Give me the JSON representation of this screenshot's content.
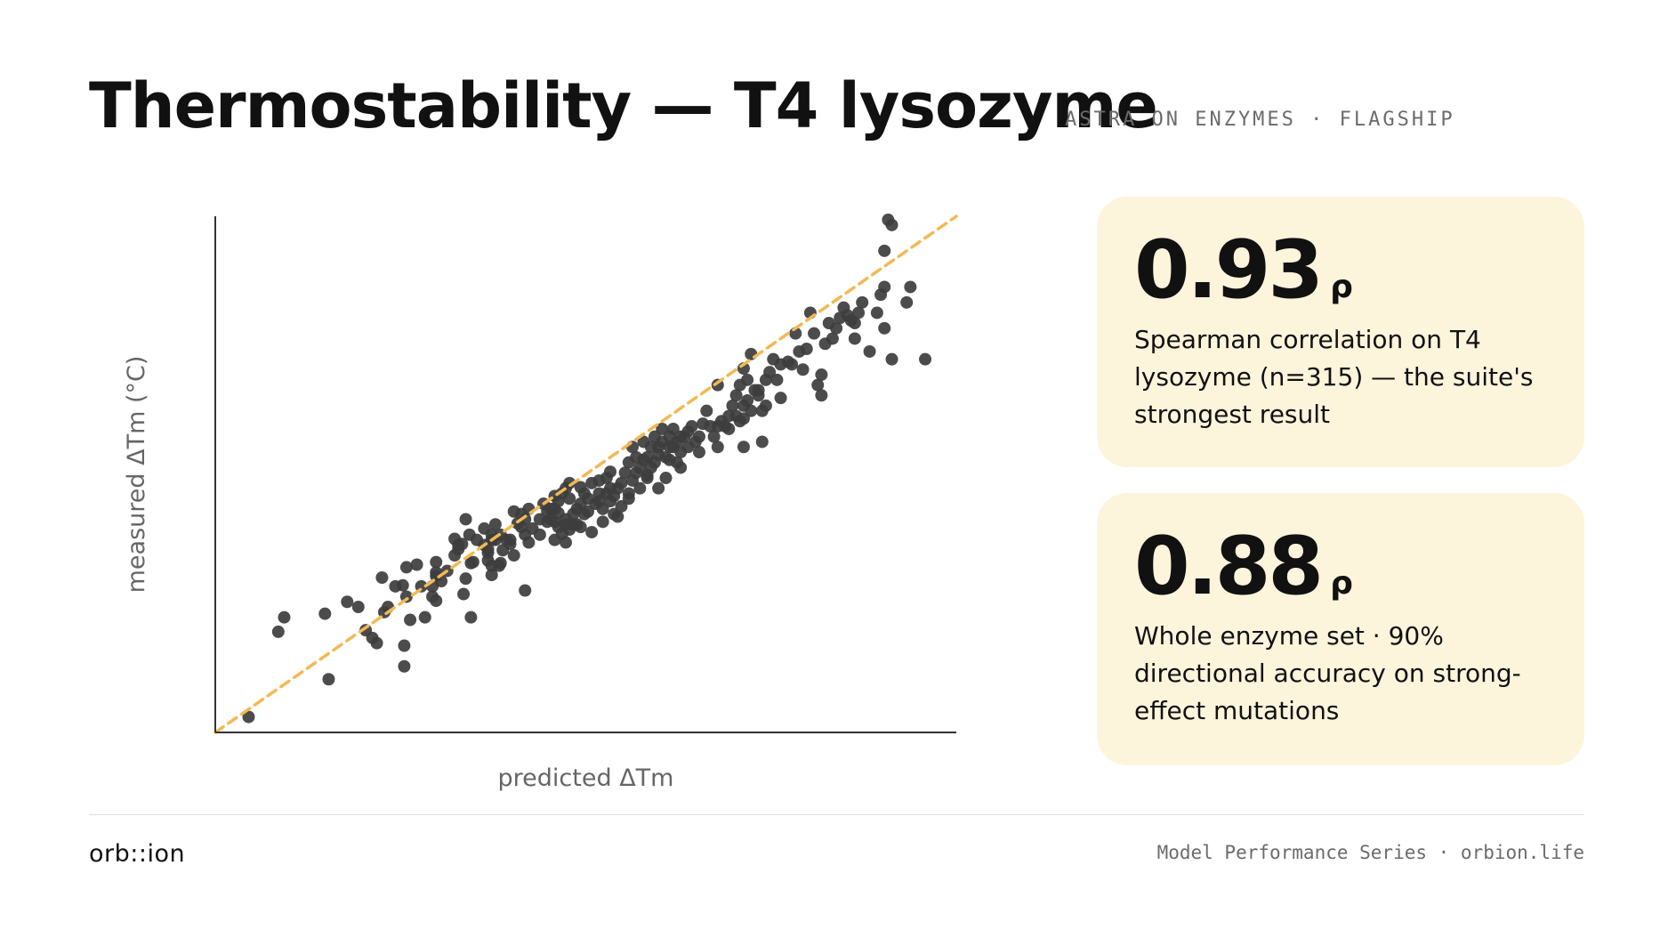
{
  "header": {
    "title": "Thermostability — T4 lysozyme",
    "subtitle": "ASTRA ON ENZYMES · FLAGSHIP"
  },
  "chart_data": {
    "type": "scatter",
    "xlabel": "predicted ΔTm",
    "ylabel": "measured ΔTm (°C)",
    "xlim": [
      0,
      100
    ],
    "ylim": [
      0,
      100
    ],
    "grid": false,
    "legend": "none",
    "point_color": "#3d3d3d",
    "reference_line": {
      "style": "dashed",
      "color": "#f2b955",
      "from": [
        0,
        0
      ],
      "to": [
        100,
        100
      ]
    },
    "points": [
      [
        4.5,
        3
      ],
      [
        8.5,
        19.5
      ],
      [
        9.3,
        22.3
      ],
      [
        14.8,
        23
      ],
      [
        15.3,
        10.3
      ],
      [
        17.8,
        25.3
      ],
      [
        19.3,
        24.3
      ],
      [
        20.3,
        19.8
      ],
      [
        21.2,
        18.3
      ],
      [
        21.8,
        17.3
      ],
      [
        22.8,
        23.3
      ],
      [
        22.5,
        30
      ],
      [
        23.3,
        24.3
      ],
      [
        24.3,
        28.3
      ],
      [
        25.3,
        28.5
      ],
      [
        25.8,
        26.3
      ],
      [
        25.5,
        12.8
      ],
      [
        25.5,
        16.8
      ],
      [
        26.3,
        21.8
      ],
      [
        25.8,
        32
      ],
      [
        27.2,
        32.5
      ],
      [
        27.8,
        28.3
      ],
      [
        28.3,
        22.3
      ],
      [
        29.3,
        28.3
      ],
      [
        29.3,
        26.3
      ],
      [
        29.8,
        33
      ],
      [
        29.8,
        31
      ],
      [
        29.8,
        30.3
      ],
      [
        29.8,
        25.5
      ],
      [
        30.5,
        29.3
      ],
      [
        31.3,
        31.3
      ],
      [
        32.3,
        34.3
      ],
      [
        32.3,
        37.5
      ],
      [
        32.8,
        36.3
      ],
      [
        32.8,
        35.5
      ],
      [
        33.3,
        36.5
      ],
      [
        33.8,
        29.8
      ],
      [
        33.5,
        26.8
      ],
      [
        34.5,
        32.8
      ],
      [
        33.8,
        41.3
      ],
      [
        34.3,
        38.3
      ],
      [
        34.8,
        33
      ],
      [
        34.5,
        22.3
      ],
      [
        35.3,
        37.3
      ],
      [
        36.3,
        39.5
      ],
      [
        36.3,
        36.3
      ],
      [
        36.8,
        35.5
      ],
      [
        36.8,
        34.8
      ],
      [
        37.3,
        37.3
      ],
      [
        37.3,
        38.3
      ],
      [
        36.8,
        33.3
      ],
      [
        37.3,
        32.3
      ],
      [
        37.3,
        30.5
      ],
      [
        37.8,
        40.3
      ],
      [
        37.8,
        37.3
      ],
      [
        38.3,
        32.3
      ],
      [
        38.5,
        32.8
      ],
      [
        38.8,
        35.3
      ],
      [
        38.5,
        38.3
      ],
      [
        39.3,
        37.3
      ],
      [
        39.8,
        37.3
      ],
      [
        39.8,
        36.5
      ],
      [
        40.3,
        34.3
      ],
      [
        40.3,
        42.8
      ],
      [
        40.8,
        40.5
      ],
      [
        41.3,
        42.3
      ],
      [
        41.3,
        39.8
      ],
      [
        41.8,
        41.3
      ],
      [
        41.8,
        38.3
      ],
      [
        41.8,
        27.5
      ],
      [
        42.3,
        43.3
      ],
      [
        42.3,
        36.8
      ],
      [
        42.8,
        39.5
      ],
      [
        43.8,
        41.3
      ],
      [
        43.8,
        38.3
      ],
      [
        44.3,
        44.3
      ],
      [
        44.8,
        42.8
      ],
      [
        44.8,
        40.8
      ],
      [
        45.3,
        43.3
      ],
      [
        45.3,
        41.3
      ],
      [
        45.8,
        45.8
      ],
      [
        45.8,
        43.3
      ],
      [
        45.8,
        40.8
      ],
      [
        45.8,
        37.3
      ],
      [
        46.3,
        39.8
      ],
      [
        46.3,
        42.5
      ],
      [
        46.8,
        46.3
      ],
      [
        46.8,
        38.5
      ],
      [
        46.3,
        44.8
      ],
      [
        47.3,
        47.3
      ],
      [
        47.3,
        41.3
      ],
      [
        47.3,
        40.3
      ],
      [
        47.3,
        36.8
      ],
      [
        47.8,
        45.3
      ],
      [
        47.8,
        39.3
      ],
      [
        47.8,
        48.3
      ],
      [
        48.3,
        42.3
      ],
      [
        48.3,
        40.3
      ],
      [
        48.8,
        43.3
      ],
      [
        48.8,
        40.3
      ],
      [
        49.3,
        44.3
      ],
      [
        49.3,
        39.8
      ],
      [
        49.3,
        47.5
      ],
      [
        49.8,
        46.3
      ],
      [
        49.8,
        42.3
      ],
      [
        50.3,
        45.3
      ],
      [
        50.3,
        42.8
      ],
      [
        50.8,
        48.3
      ],
      [
        50.8,
        38.8
      ],
      [
        51.3,
        44.3
      ],
      [
        51.8,
        46.3
      ],
      [
        51.8,
        48.8
      ],
      [
        51.8,
        44.8
      ],
      [
        52.3,
        43.3
      ],
      [
        52.3,
        40.8
      ],
      [
        52.8,
        46.3
      ],
      [
        52.8,
        49.3
      ],
      [
        53.3,
        47.3
      ],
      [
        53.3,
        50.5
      ],
      [
        53.3,
        44.8
      ],
      [
        53.8,
        45.8
      ],
      [
        53.8,
        42.3
      ],
      [
        54.3,
        47.3
      ],
      [
        54.3,
        41.8
      ],
      [
        54.8,
        48.3
      ],
      [
        54.8,
        43.8
      ],
      [
        55.3,
        50.3
      ],
      [
        55.8,
        46.3
      ],
      [
        55.8,
        52.3
      ],
      [
        55.8,
        45.3
      ],
      [
        56.3,
        48.8
      ],
      [
        56.3,
        55.3
      ],
      [
        56.8,
        50.3
      ],
      [
        56.8,
        53.3
      ],
      [
        57.3,
        51.3
      ],
      [
        57.3,
        47.3
      ],
      [
        57.8,
        52.8
      ],
      [
        57.8,
        56.3
      ],
      [
        58.3,
        53.3
      ],
      [
        58.3,
        49.3
      ],
      [
        58.8,
        55.3
      ],
      [
        58.8,
        51.3
      ],
      [
        59.3,
        57.3
      ],
      [
        59.3,
        52.3
      ],
      [
        59.8,
        55.3
      ],
      [
        59.8,
        53.8
      ],
      [
        59.8,
        47.3
      ],
      [
        60.3,
        58.8
      ],
      [
        60.3,
        56.3
      ],
      [
        60.8,
        53.3
      ],
      [
        60.8,
        49.3
      ],
      [
        61.3,
        57.3
      ],
      [
        61.3,
        55.3
      ],
      [
        61.8,
        55.3
      ],
      [
        61.8,
        58.8
      ],
      [
        62.3,
        56.3
      ],
      [
        62.3,
        52.3
      ],
      [
        62.8,
        54.3
      ],
      [
        62.8,
        57.3
      ],
      [
        62.8,
        51.3
      ],
      [
        63.3,
        57.3
      ],
      [
        63.8,
        55.3
      ],
      [
        63.8,
        58.3
      ],
      [
        64.3,
        59.3
      ],
      [
        64.8,
        56.3
      ],
      [
        65.3,
        54.3
      ],
      [
        65.3,
        57.3
      ],
      [
        65.8,
        59.8
      ],
      [
        66.3,
        62.3
      ],
      [
        67.3,
        57.3
      ],
      [
        67.8,
        59.3
      ],
      [
        67.8,
        55.3
      ],
      [
        67.8,
        67.3
      ],
      [
        68.3,
        60.3
      ],
      [
        68.8,
        59.3
      ],
      [
        69.3,
        61.3
      ],
      [
        69.3,
        58.8
      ],
      [
        69.8,
        63.3
      ],
      [
        70.3,
        61.3
      ],
      [
        70.3,
        65.3
      ],
      [
        70.8,
        60.3
      ],
      [
        70.8,
        67.3
      ],
      [
        71.3,
        63.3
      ],
      [
        71.3,
        60.8
      ],
      [
        71.3,
        55.3
      ],
      [
        71.3,
        70.5
      ],
      [
        71.8,
        64.3
      ],
      [
        72.3,
        62.3
      ],
      [
        72.3,
        73.3
      ],
      [
        72.8,
        66.3
      ],
      [
        73.3,
        65.3
      ],
      [
        73.8,
        62.3
      ],
      [
        73.8,
        56.3
      ],
      [
        74.3,
        63.3
      ],
      [
        74.3,
        68.3
      ],
      [
        74.8,
        69.8
      ],
      [
        75.3,
        72.3
      ],
      [
        75.8,
        68.3
      ],
      [
        76.3,
        64.8
      ],
      [
        76.3,
        71.3
      ],
      [
        77.8,
        71.3
      ],
      [
        78.3,
        77.3
      ],
      [
        78.8,
        73.8
      ],
      [
        79.3,
        70.3
      ],
      [
        79.8,
        74.3
      ],
      [
        80.3,
        81.3
      ],
      [
        80.8,
        77.3
      ],
      [
        81.3,
        67.3
      ],
      [
        81.8,
        69.3
      ],
      [
        81.8,
        65.3
      ],
      [
        82.3,
        75.3
      ],
      [
        82.8,
        79.3
      ],
      [
        83.3,
        76.3
      ],
      [
        83.8,
        78.3
      ],
      [
        84.3,
        80.3
      ],
      [
        84.8,
        82.3
      ],
      [
        85.3,
        80.8
      ],
      [
        85.8,
        79.8
      ],
      [
        86.3,
        79.3
      ],
      [
        86.8,
        81.3
      ],
      [
        87.3,
        83.3
      ],
      [
        89.3,
        81.3
      ],
      [
        90.3,
        86.3
      ],
      [
        91.3,
        72.3
      ],
      [
        93.8,
        86.3
      ],
      [
        95.8,
        72.3
      ],
      [
        90.3,
        78.3
      ],
      [
        93.3,
        83.3
      ],
      [
        89.8,
        84.8
      ],
      [
        90.3,
        93.3
      ],
      [
        90.8,
        99.3
      ],
      [
        91.3,
        98.3
      ],
      [
        86.3,
        76.3
      ],
      [
        88.3,
        73.8
      ],
      [
        77.3,
        71.8
      ],
      [
        73.3,
        66.3
      ],
      [
        71.8,
        68.3
      ],
      [
        66.8,
        59.3
      ],
      [
        61.3,
        52.8
      ],
      [
        58.3,
        49.8
      ]
    ]
  },
  "cards": [
    {
      "value": "0.93",
      "unit": "ρ",
      "description": "Spearman correlation on T4 lysozyme (n=315) — the suite's strongest result"
    },
    {
      "value": "0.88",
      "unit": "ρ",
      "description": "Whole enzyme set · 90% directional accuracy on strong-effect mutations"
    }
  ],
  "footer": {
    "brand": "orb::ion",
    "series": "Model Performance Series · orbion.life"
  }
}
